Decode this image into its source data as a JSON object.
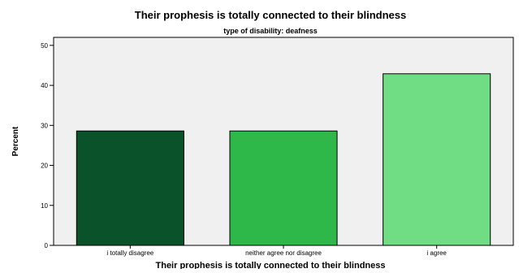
{
  "chart_data": {
    "type": "bar",
    "title": "Their prophesis is totally connected to their blindness",
    "subtitle": "type of disability: deafness",
    "xlabel": "Their prophesis is totally connected to their blindness",
    "ylabel": "Percent",
    "categories": [
      "i totally disagree",
      "neither agree nor disagree",
      "i agree"
    ],
    "values": [
      28.6,
      28.6,
      42.9
    ],
    "bar_colors": [
      "#0a5229",
      "#2eb84a",
      "#70dc84"
    ],
    "ylim": [
      0,
      52
    ],
    "yticks": [
      0,
      10,
      20,
      30,
      40,
      50
    ],
    "plot_background": "#f0f0f0",
    "grid": false,
    "legend": "none"
  }
}
